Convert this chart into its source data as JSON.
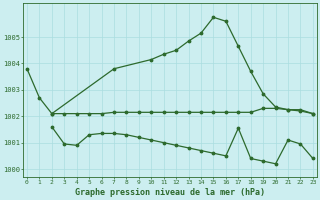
{
  "line1_x": [
    0,
    1,
    2,
    7,
    10,
    11,
    12,
    13,
    14,
    15,
    16,
    17,
    18,
    19,
    20,
    21,
    22,
    23
  ],
  "line1_y": [
    1003.8,
    1002.7,
    1002.1,
    1003.8,
    1004.15,
    1004.35,
    1004.5,
    1004.85,
    1005.15,
    1005.75,
    1005.6,
    1004.65,
    1003.7,
    1002.85,
    1002.35,
    1002.25,
    1002.25,
    1002.1
  ],
  "line2_x": [
    2,
    3,
    4,
    5,
    6,
    7,
    8,
    9,
    10,
    11,
    12,
    13,
    14,
    15,
    16,
    17,
    18,
    19,
    20,
    21,
    22,
    23
  ],
  "line2_y": [
    1002.1,
    1002.1,
    1002.1,
    1002.1,
    1002.1,
    1002.15,
    1002.15,
    1002.15,
    1002.15,
    1002.15,
    1002.15,
    1002.15,
    1002.15,
    1002.15,
    1002.15,
    1002.15,
    1002.15,
    1002.3,
    1002.3,
    1002.25,
    1002.2,
    1002.1
  ],
  "line3_x": [
    2,
    3,
    4,
    5,
    6,
    7,
    8,
    9,
    10,
    11,
    12,
    13,
    14,
    15,
    16,
    17,
    18,
    19,
    20,
    21,
    22,
    23
  ],
  "line3_y": [
    1001.6,
    1000.95,
    1000.9,
    1001.3,
    1001.35,
    1001.35,
    1001.3,
    1001.2,
    1001.1,
    1001.0,
    1000.9,
    1000.8,
    1000.7,
    1000.6,
    1000.5,
    1001.55,
    1000.4,
    1000.3,
    1000.2,
    1001.1,
    1000.95,
    1000.4
  ],
  "color": "#2d6a2d",
  "bg_color": "#cceef0",
  "grid_color": "#aadde0",
  "xlabel": "Graphe pression niveau de la mer (hPa)",
  "ylim": [
    999.7,
    1006.3
  ],
  "xlim": [
    -0.3,
    23.3
  ],
  "yticks": [
    1000,
    1001,
    1002,
    1003,
    1004,
    1005
  ],
  "xticks": [
    0,
    1,
    2,
    3,
    4,
    5,
    6,
    7,
    8,
    9,
    10,
    11,
    12,
    13,
    14,
    15,
    16,
    17,
    18,
    19,
    20,
    21,
    22,
    23
  ]
}
